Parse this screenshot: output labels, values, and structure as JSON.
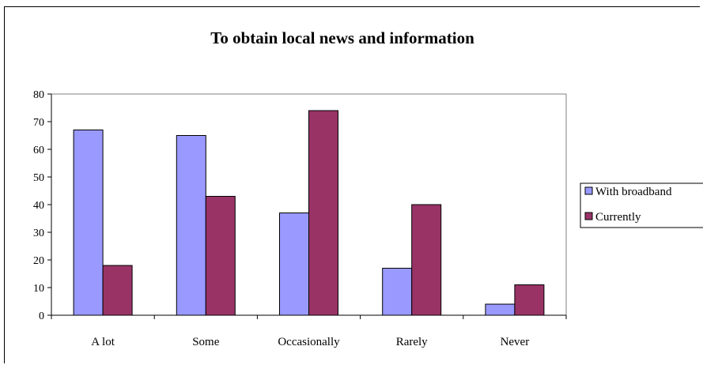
{
  "chart_data": {
    "type": "bar",
    "title": "To obtain local news and information",
    "categories": [
      "A lot",
      "Some",
      "Occasionally",
      "Rarely",
      "Never"
    ],
    "series": [
      {
        "name": "With broadband",
        "values": [
          67,
          65,
          37,
          17,
          4
        ],
        "color": "#9999ff"
      },
      {
        "name": "Currently",
        "values": [
          18,
          43,
          74,
          40,
          11
        ],
        "color": "#993366"
      }
    ],
    "ylim": [
      0,
      80
    ],
    "yticks": [
      0,
      10,
      20,
      30,
      40,
      50,
      60,
      70,
      80
    ],
    "xlabel": "",
    "ylabel": "",
    "grid": false,
    "legend_position": "right"
  }
}
